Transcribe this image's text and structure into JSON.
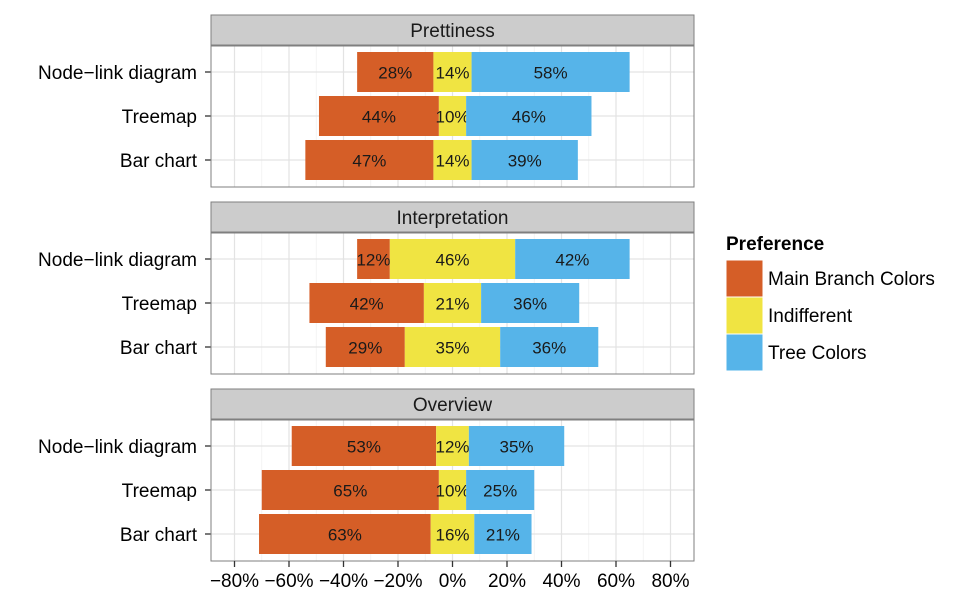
{
  "chart_data": {
    "type": "bar",
    "orientation": "horizontal-diverging",
    "facets": [
      {
        "title": "Prettiness",
        "categories": [
          "Node−link diagram",
          "Treemap",
          "Bar chart"
        ],
        "series": [
          {
            "name": "Main Branch Colors",
            "values": [
              28,
              44,
              47
            ]
          },
          {
            "name": "Indifferent",
            "values": [
              14,
              10,
              14
            ]
          },
          {
            "name": "Tree Colors",
            "values": [
              58,
              46,
              39
            ]
          }
        ]
      },
      {
        "title": "Interpretation",
        "categories": [
          "Node−link diagram",
          "Treemap",
          "Bar chart"
        ],
        "series": [
          {
            "name": "Main Branch Colors",
            "values": [
              12,
              42,
              29
            ]
          },
          {
            "name": "Indifferent",
            "values": [
              46,
              21,
              35
            ]
          },
          {
            "name": "Tree Colors",
            "values": [
              42,
              36,
              36
            ]
          }
        ]
      },
      {
        "title": "Overview",
        "categories": [
          "Node−link diagram",
          "Treemap",
          "Bar chart"
        ],
        "series": [
          {
            "name": "Main Branch Colors",
            "values": [
              53,
              65,
              63
            ]
          },
          {
            "name": "Indifferent",
            "values": [
              12,
              10,
              16
            ]
          },
          {
            "name": "Tree Colors",
            "values": [
              35,
              25,
              21
            ]
          }
        ]
      }
    ],
    "x_ticks": [
      "−80%",
      "−60%",
      "−40%",
      "−20%",
      "0%",
      "20%",
      "40%",
      "60%",
      "80%"
    ],
    "xlim": [
      -80,
      80
    ],
    "legend": {
      "title": "Preference",
      "position": "right",
      "items": [
        "Main Branch Colors",
        "Indifferent",
        "Tree Colors"
      ]
    },
    "colors": {
      "Main Branch Colors": "#D55E27",
      "Indifferent": "#F0E442",
      "Tree Colors": "#56B4E9"
    },
    "grid": true
  }
}
